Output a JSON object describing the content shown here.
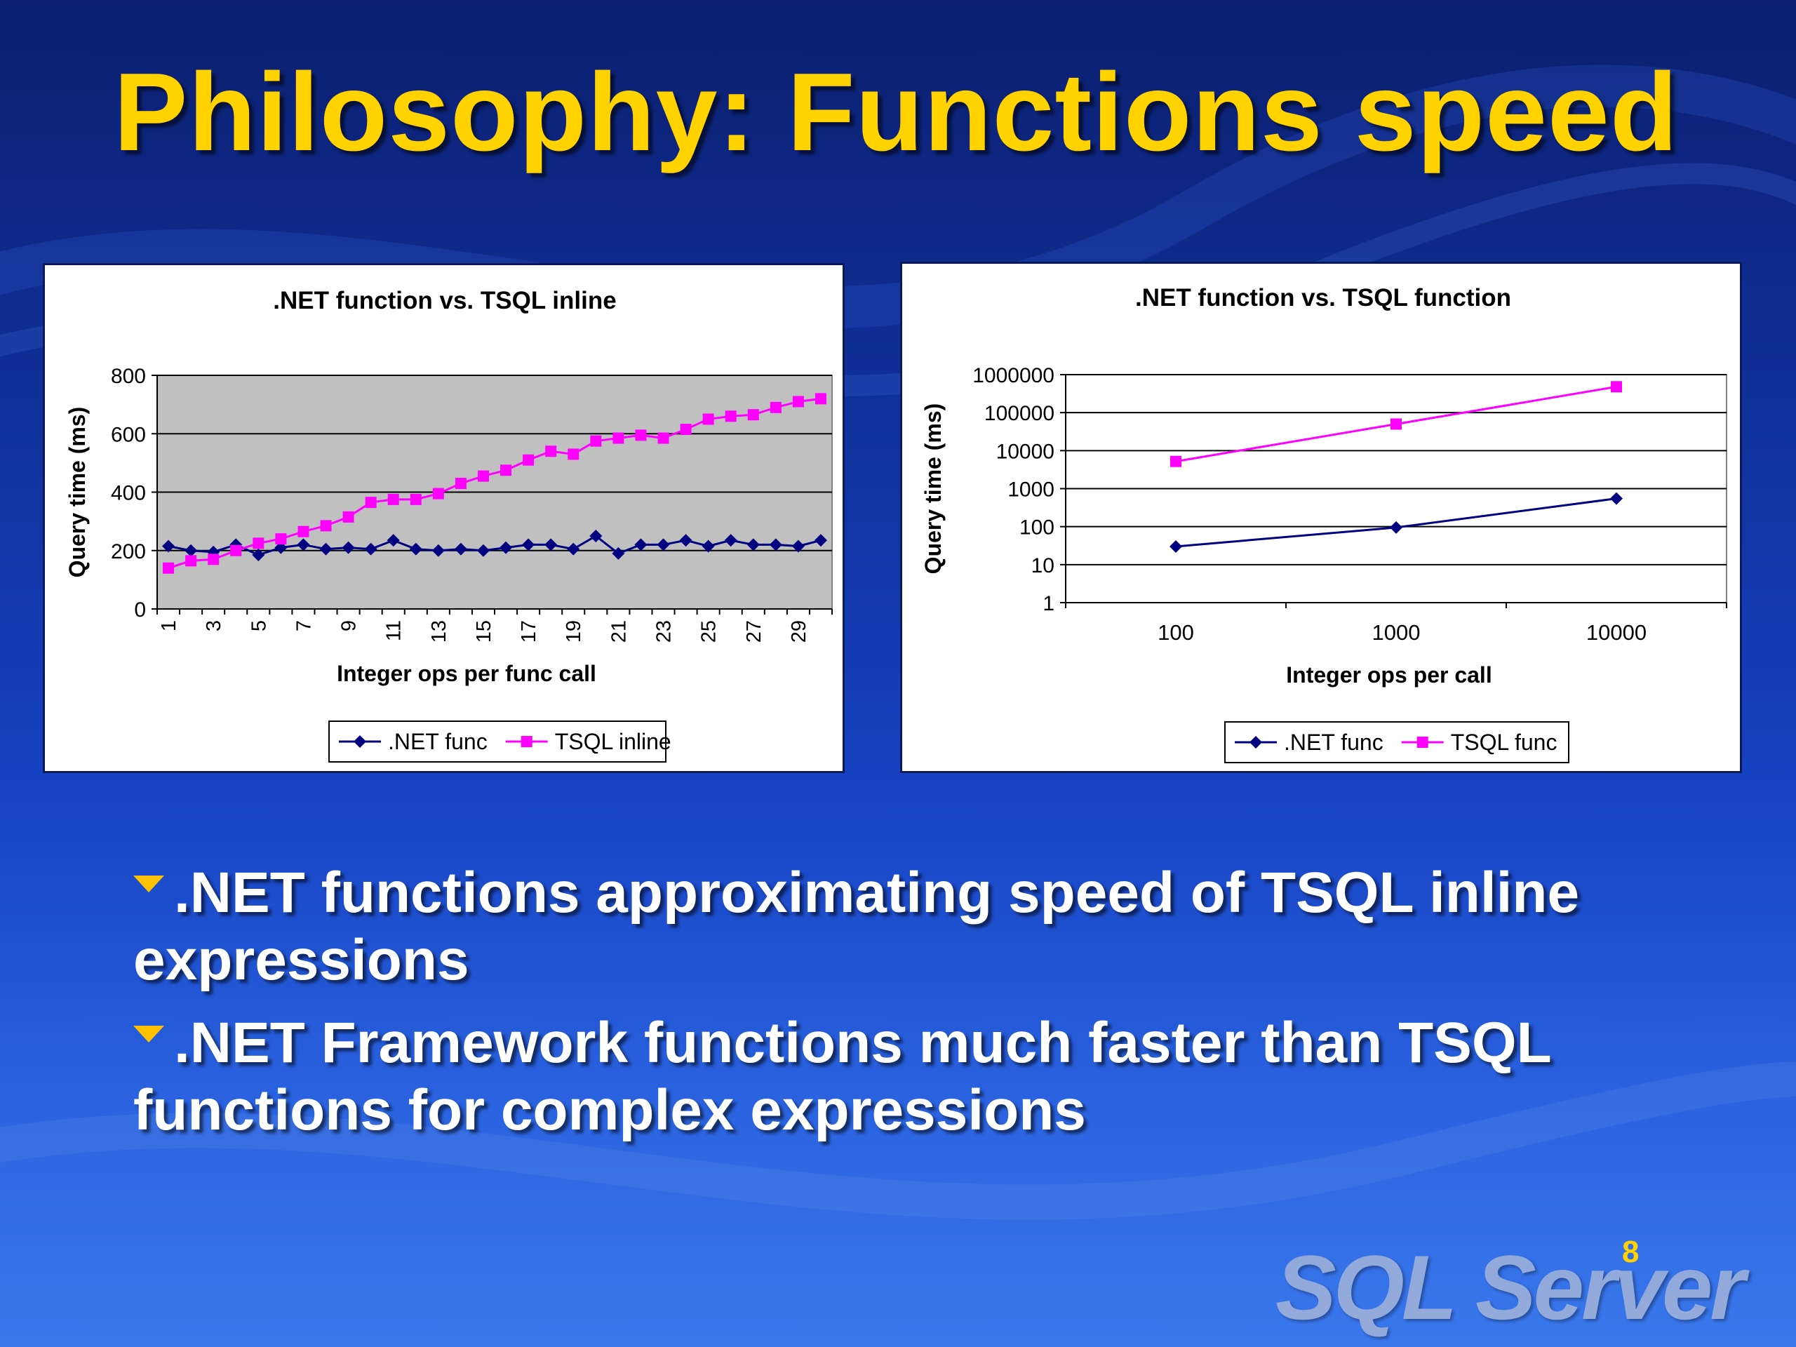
{
  "slide": {
    "title": "Philosophy: Functions speed",
    "bullets": [
      ".NET functions approximating speed of TSQL inline expressions",
      ".NET Framework functions much faster than TSQL functions for complex expressions"
    ],
    "page_number": "8",
    "logo_text": "SQL Server"
  },
  "colors": {
    "title": "#ffd200",
    "net_series": "#000080",
    "tsql_series": "#ff00ff",
    "plot_bg_left": "#c0c0c0"
  },
  "chart_data": [
    {
      "type": "line",
      "title": ".NET function vs. TSQL inline",
      "xlabel": "Integer ops per func call",
      "ylabel": "Query time (ms)",
      "ylim": [
        0,
        800
      ],
      "yticks": [
        0,
        200,
        400,
        600,
        800
      ],
      "x": [
        1,
        2,
        3,
        4,
        5,
        6,
        7,
        8,
        9,
        10,
        11,
        12,
        13,
        14,
        15,
        16,
        17,
        18,
        19,
        20,
        21,
        22,
        23,
        24,
        25,
        26,
        27,
        28,
        29,
        30
      ],
      "xtick_labels": [
        "1",
        "3",
        "5",
        "7",
        "9",
        "11",
        "13",
        "15",
        "17",
        "19",
        "21",
        "23",
        "25",
        "27",
        "29"
      ],
      "grid": true,
      "legend": "bottom",
      "series": [
        {
          "name": ".NET func",
          "marker": "diamond",
          "color": "#000080",
          "values": [
            215,
            200,
            195,
            220,
            185,
            210,
            220,
            205,
            210,
            205,
            235,
            205,
            200,
            205,
            200,
            210,
            220,
            220,
            205,
            250,
            190,
            220,
            220,
            235,
            215,
            235,
            220,
            220,
            215,
            235
          ]
        },
        {
          "name": "TSQL inline",
          "marker": "square",
          "color": "#ff00ff",
          "values": [
            140,
            165,
            170,
            200,
            225,
            240,
            265,
            285,
            315,
            365,
            375,
            375,
            395,
            430,
            455,
            475,
            510,
            540,
            530,
            575,
            585,
            595,
            585,
            615,
            650,
            660,
            665,
            690,
            710,
            720
          ]
        }
      ]
    },
    {
      "type": "line",
      "title": ".NET function vs. TSQL function",
      "xlabel": "Integer ops per call",
      "ylabel": "Query time (ms)",
      "yscale": "log",
      "ylim": [
        1,
        1000000
      ],
      "yticks": [
        1,
        10,
        100,
        1000,
        10000,
        100000,
        1000000
      ],
      "categories": [
        "100",
        "1000",
        "10000"
      ],
      "grid": true,
      "legend": "bottom",
      "series": [
        {
          "name": ".NET func",
          "marker": "diamond",
          "color": "#000080",
          "values": [
            30,
            95,
            550
          ]
        },
        {
          "name": "TSQL func",
          "marker": "square",
          "color": "#ff00ff",
          "values": [
            5200,
            50000,
            480000
          ]
        }
      ]
    }
  ]
}
